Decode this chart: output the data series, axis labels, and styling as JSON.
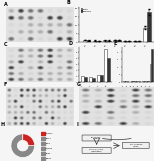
{
  "bg_color": "#f5f5f5",
  "wb_bg": "#d8d8d8",
  "wb_band_light": "#b0b0b0",
  "wb_band_dark": "#333333",
  "bar_white": "#ffffff",
  "bar_dark": "#333333",
  "pie_red": "#cc2222",
  "pie_gray": "#888888",
  "pie_white": "#ffffff",
  "label_size": 3.5,
  "tick_size": 2.0,
  "panel_bg": "#eeeeee"
}
